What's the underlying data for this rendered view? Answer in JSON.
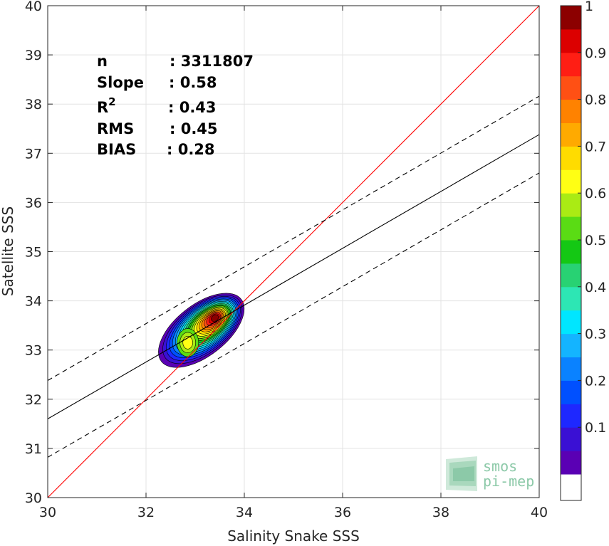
{
  "chart_data": {
    "type": "scatter",
    "title": "",
    "xlabel": "Salinity Snake SSS",
    "ylabel": "Satellite SSS",
    "xlim": [
      30,
      40
    ],
    "ylim": [
      30,
      40
    ],
    "xticks": [
      "30",
      "32",
      "34",
      "36",
      "38",
      "40"
    ],
    "yticks": [
      "30",
      "31",
      "32",
      "33",
      "34",
      "35",
      "36",
      "37",
      "38",
      "39",
      "40"
    ],
    "grid": true,
    "stats": [
      {
        "label": "n",
        "value": ": 3311807"
      },
      {
        "label": "Slope",
        "value": ": 0.58"
      },
      {
        "label": "R",
        "sup": "2",
        "value": ": 0.43"
      },
      {
        "label": "RMS",
        "value": ": 0.45"
      },
      {
        "label": "BIAS",
        "value": ": 0.28"
      }
    ],
    "lines": {
      "identity": {
        "x": [
          30,
          40
        ],
        "y": [
          30,
          40
        ],
        "color": "#ff0000"
      },
      "fit": {
        "x": [
          30,
          40
        ],
        "y": [
          31.6,
          37.38
        ],
        "color": "#000000"
      },
      "fit_upper": {
        "x": [
          30,
          40
        ],
        "y": [
          32.38,
          38.16
        ],
        "dash": true
      },
      "fit_lower": {
        "x": [
          30,
          40
        ],
        "y": [
          30.82,
          36.6
        ],
        "dash": true
      }
    },
    "density": {
      "peaks": [
        {
          "x": 33.4,
          "y": 33.65,
          "level": 1.0
        },
        {
          "x": 32.85,
          "y": 33.15,
          "level": 0.65
        }
      ],
      "contour_levels": [
        0.05,
        0.1,
        0.15,
        0.2,
        0.25,
        0.3,
        0.35,
        0.4,
        0.45,
        0.5,
        0.55,
        0.6,
        0.65,
        0.7,
        0.75,
        0.8,
        0.85,
        0.9,
        0.95,
        1.0
      ]
    },
    "colorbar": {
      "ticks": [
        "0.1",
        "0.2",
        "0.3",
        "0.4",
        "0.5",
        "0.6",
        "0.7",
        "0.8",
        "0.9",
        "1"
      ],
      "colors": [
        "#5a00b4",
        "#3a10d4",
        "#1e28ff",
        "#0050ff",
        "#0a82ff",
        "#14b4ff",
        "#00e6ff",
        "#2de6b4",
        "#28d273",
        "#14c814",
        "#5adc14",
        "#aaeb14",
        "#ffff14",
        "#ffdc00",
        "#ffaa00",
        "#ff8200",
        "#ff5014",
        "#ff1e14",
        "#dc0000",
        "#8c0000"
      ]
    }
  },
  "logo": {
    "line1": "smos",
    "line2": "pi-mep"
  }
}
